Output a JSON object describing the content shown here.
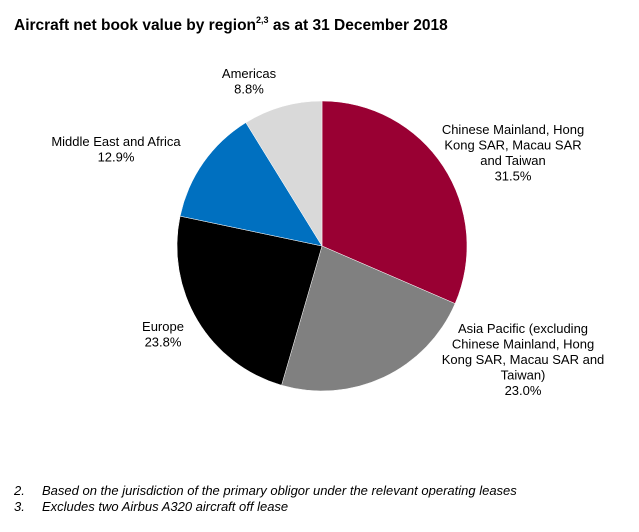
{
  "title": {
    "text": "Aircraft net book value by region",
    "superscript": "2,3",
    "suffix": " as at 31 December 2018"
  },
  "chart_data": {
    "type": "pie",
    "title": "Aircraft net book value by region as at 31 December 2018",
    "slices": [
      {
        "label_lines": [
          "Chinese Mainland, Hong",
          "Kong SAR, Macau SAR",
          "and Taiwan"
        ],
        "value_label": "31.5%",
        "value": 31.5,
        "color": "#990033"
      },
      {
        "label_lines": [
          "Asia Pacific (excluding",
          "Chinese Mainland, Hong",
          "Kong SAR, Macau SAR and",
          "Taiwan)"
        ],
        "value_label": "23.0%",
        "value": 23.0,
        "color": "#808080"
      },
      {
        "label_lines": [
          "Europe"
        ],
        "value_label": "23.8%",
        "value": 23.8,
        "color": "#000000"
      },
      {
        "label_lines": [
          "Middle East and Africa"
        ],
        "value_label": "12.9%",
        "value": 12.9,
        "color": "#0070C0"
      },
      {
        "label_lines": [
          "Americas"
        ],
        "value_label": "8.8%",
        "value": 8.8,
        "color": "#D9D9D9"
      }
    ],
    "start_angle": "12 o'clock",
    "direction": "clockwise",
    "legend": "none"
  },
  "footnotes": [
    {
      "number": "2.",
      "text": "Based on the jurisdiction of the primary obligor under the relevant operating leases"
    },
    {
      "number": "3.",
      "text": "Excludes two Airbus A320 aircraft off lease"
    }
  ]
}
